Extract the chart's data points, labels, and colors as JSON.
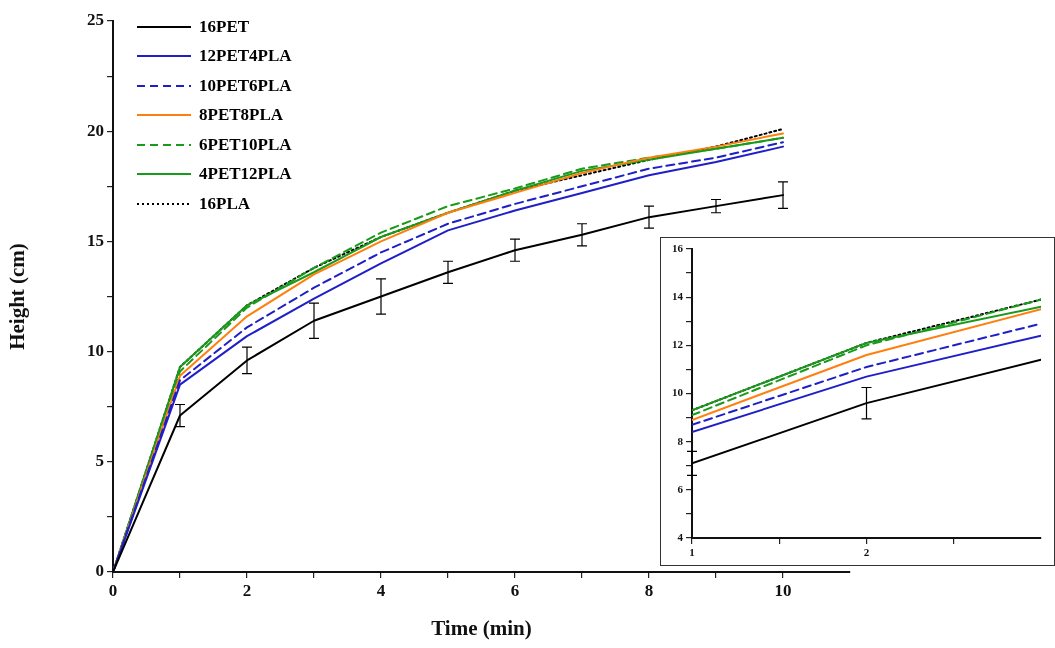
{
  "chart_data": [
    {
      "type": "line",
      "xlabel": "Time (min)",
      "ylabel": "Height (cm)",
      "x": [
        0,
        1,
        2,
        3,
        4,
        5,
        6,
        7,
        8,
        9,
        10
      ],
      "xlim": [
        0,
        11
      ],
      "xticks": [
        0,
        {
          "value": 1,
          "label": null
        },
        2,
        {
          "value": 3,
          "label": null
        },
        4,
        {
          "value": 5,
          "label": null
        },
        6,
        {
          "value": 7,
          "label": null
        },
        8,
        {
          "value": 9,
          "label": null
        },
        10
      ],
      "ylim": [
        0,
        25
      ],
      "yticks": [
        0,
        {
          "value": 2.5,
          "label": null
        },
        5,
        {
          "value": 7.5,
          "label": null
        },
        10,
        {
          "value": 12.5,
          "label": null
        },
        15,
        {
          "value": 17.5,
          "label": null
        },
        20,
        {
          "value": 22.5,
          "label": null
        },
        25
      ],
      "grid": false,
      "legend": "top left",
      "marker": "none",
      "series": [
        {
          "name": "16PET",
          "color": "#000000",
          "line_style": "solid",
          "values": [
            0,
            7.1,
            9.6,
            11.4,
            12.5,
            13.6,
            14.6,
            15.3,
            16.1,
            16.6,
            17.1
          ],
          "errors": [
            null,
            0.5,
            0.6,
            0.8,
            0.8,
            0.5,
            0.5,
            0.5,
            0.5,
            0.3,
            0.6
          ]
        },
        {
          "name": "12PET4PLA",
          "color": "#1f1fc8",
          "line_style": "solid",
          "values": [
            0,
            8.5,
            10.7,
            12.4,
            14.0,
            15.5,
            16.4,
            17.2,
            18.0,
            18.6,
            19.3
          ]
        },
        {
          "name": "10PET6PLA",
          "color": "#1f1fc8",
          "line_style": "dashed",
          "values": [
            0,
            8.7,
            11.1,
            12.9,
            14.5,
            15.8,
            16.7,
            17.5,
            18.3,
            18.8,
            19.5
          ]
        },
        {
          "name": "8PET8PLA",
          "color": "#ff7f0e",
          "line_style": "solid",
          "values": [
            0,
            8.9,
            11.6,
            13.5,
            15.0,
            16.3,
            17.2,
            18.1,
            18.8,
            19.3,
            19.9
          ]
        },
        {
          "name": "6PET10PLA",
          "color": "#1a9a1a",
          "line_style": "dashed",
          "values": [
            0,
            9.1,
            12.0,
            13.8,
            15.4,
            16.6,
            17.4,
            18.3,
            18.8,
            19.2,
            19.7
          ]
        },
        {
          "name": "4PET12PLA",
          "color": "#1a9a1a",
          "line_style": "solid",
          "values": [
            0,
            9.3,
            12.1,
            13.6,
            15.2,
            16.3,
            17.3,
            18.2,
            18.7,
            19.2,
            19.7
          ]
        },
        {
          "name": "16PLA",
          "color": "#000000",
          "line_style": "dotted",
          "values": [
            0,
            9.3,
            12.1,
            13.8,
            15.2,
            16.3,
            17.3,
            18.0,
            18.7,
            19.3,
            20.1
          ]
        }
      ]
    },
    {
      "type": "line",
      "x": [
        1,
        2,
        3
      ],
      "xlim": [
        1,
        3
      ],
      "xticks": [
        1,
        {
          "value": 1.5,
          "label": null
        },
        2,
        {
          "value": 2.5,
          "label": null
        }
      ],
      "ylim": [
        4,
        16
      ],
      "yticks": [
        4,
        {
          "value": 5,
          "label": null
        },
        6,
        {
          "value": 7,
          "label": null
        },
        8,
        {
          "value": 9,
          "label": null
        },
        10,
        {
          "value": 11,
          "label": null
        },
        12,
        {
          "value": 13,
          "label": null
        },
        14,
        {
          "value": 15,
          "label": null
        },
        16
      ],
      "grid": false,
      "marker": "none",
      "series": [
        {
          "color": "#000000",
          "line_style": "solid",
          "values": [
            7.1,
            9.6,
            11.4
          ],
          "errors": [
            0.5,
            0.65,
            null
          ]
        },
        {
          "color": "#1f1fc8",
          "line_style": "solid",
          "values": [
            8.4,
            10.7,
            12.4
          ]
        },
        {
          "color": "#1f1fc8",
          "line_style": "dashed",
          "values": [
            8.7,
            11.1,
            12.9
          ]
        },
        {
          "color": "#ff7f0e",
          "line_style": "solid",
          "values": [
            8.9,
            11.6,
            13.5
          ]
        },
        {
          "color": "#1a9a1a",
          "line_style": "dashed",
          "values": [
            9.1,
            12.0,
            13.9
          ]
        },
        {
          "color": "#1a9a1a",
          "line_style": "solid",
          "values": [
            9.3,
            12.1,
            13.6
          ]
        },
        {
          "color": "#000000",
          "line_style": "dotted",
          "values": [
            9.3,
            12.1,
            13.9
          ]
        }
      ]
    }
  ]
}
